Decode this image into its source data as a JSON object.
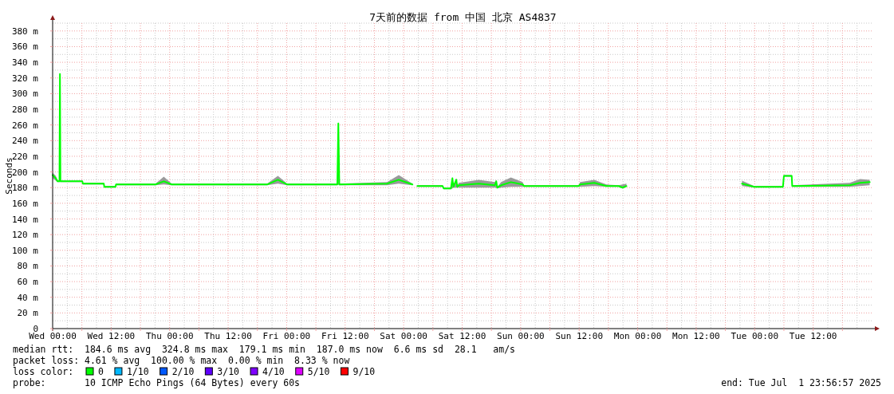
{
  "chart_data": {
    "type": "line",
    "title": "7天前的数据 from 中国 北京 AS4837",
    "ylabel": "Seconds",
    "xlim": [
      "2025-06-25T00:00",
      "2025-07-02T00:00"
    ],
    "xticks": [
      {
        "value": "2025-06-25T00:00",
        "label": "Wed 00:00"
      },
      {
        "value": "2025-06-25T06:00",
        "label": null
      },
      {
        "value": "2025-06-25T12:00",
        "label": "Wed 12:00"
      },
      {
        "value": "2025-06-25T18:00",
        "label": null
      },
      {
        "value": "2025-06-26T00:00",
        "label": "Thu 00:00"
      },
      {
        "value": "2025-06-26T06:00",
        "label": null
      },
      {
        "value": "2025-06-26T12:00",
        "label": "Thu 12:00"
      },
      {
        "value": "2025-06-26T18:00",
        "label": null
      },
      {
        "value": "2025-06-27T00:00",
        "label": "Fri 00:00"
      },
      {
        "value": "2025-06-27T06:00",
        "label": null
      },
      {
        "value": "2025-06-27T12:00",
        "label": "Fri 12:00"
      },
      {
        "value": "2025-06-27T18:00",
        "label": null
      },
      {
        "value": "2025-06-28T00:00",
        "label": "Sat 00:00"
      },
      {
        "value": "2025-06-28T06:00",
        "label": null
      },
      {
        "value": "2025-06-28T12:00",
        "label": "Sat 12:00"
      },
      {
        "value": "2025-06-28T18:00",
        "label": null
      },
      {
        "value": "2025-06-29T00:00",
        "label": "Sun 00:00"
      },
      {
        "value": "2025-06-29T06:00",
        "label": null
      },
      {
        "value": "2025-06-29T12:00",
        "label": "Sun 12:00"
      },
      {
        "value": "2025-06-29T18:00",
        "label": null
      },
      {
        "value": "2025-06-30T00:00",
        "label": "Mon 00:00"
      },
      {
        "value": "2025-06-30T06:00",
        "label": null
      },
      {
        "value": "2025-06-30T12:00",
        "label": "Mon 12:00"
      },
      {
        "value": "2025-06-30T18:00",
        "label": null
      },
      {
        "value": "2025-07-01T00:00",
        "label": "Tue 00:00"
      },
      {
        "value": "2025-07-01T06:00",
        "label": null
      },
      {
        "value": "2025-07-01T12:00",
        "label": "Tue 12:00"
      },
      {
        "value": "2025-07-01T18:00",
        "label": null
      }
    ],
    "ylim": [
      0,
      390
    ],
    "yticks": [
      0,
      {
        "value": 20,
        "label": "20 m"
      },
      {
        "value": 40,
        "label": "40 m"
      },
      {
        "value": 60,
        "label": "60 m"
      },
      {
        "value": 80,
        "label": "80 m"
      },
      {
        "value": 100,
        "label": "100 m"
      },
      {
        "value": 120,
        "label": "120 m"
      },
      {
        "value": 140,
        "label": "140 m"
      },
      {
        "value": 160,
        "label": "160 m"
      },
      {
        "value": 180,
        "label": "180 m"
      },
      {
        "value": 200,
        "label": "200 m"
      },
      {
        "value": 220,
        "label": "220 m"
      },
      {
        "value": 240,
        "label": "240 m"
      },
      {
        "value": 260,
        "label": "260 m"
      },
      {
        "value": 280,
        "label": "280 m"
      },
      {
        "value": 300,
        "label": "300 m"
      },
      {
        "value": 320,
        "label": "320 m"
      },
      {
        "value": 340,
        "label": "340 m"
      },
      {
        "value": 360,
        "label": "360 m"
      },
      {
        "value": 380,
        "label": "380 m"
      }
    ],
    "grid": true,
    "series": [
      {
        "color": "#00ff00",
        "x": [
          "2025-06-25T00:00",
          "2025-06-25T00:39",
          "2025-06-25T01:00",
          "2025-06-25T01:24",
          "2025-06-25T01:30",
          "2025-06-25T01:36",
          "2025-06-25T06:06",
          "2025-06-25T06:12",
          "2025-06-25T10:30",
          "2025-06-25T10:36",
          "2025-06-25T12:54",
          "2025-06-25T13:00",
          "2025-06-25T21:06",
          "2025-06-25T22:48",
          "2025-06-26T00:24",
          "2025-06-26T20:00",
          "2025-06-26T22:12",
          "2025-06-27T00:06",
          "2025-06-27T10:24",
          "2025-06-27T10:36",
          "2025-06-27T10:48",
          "2025-06-27T20:36",
          "2025-06-27T23:00",
          "2025-06-28T01:48"
        ],
        "values": [
          196,
          192,
          188,
          188,
          325,
          188,
          188,
          185,
          185,
          181,
          181,
          184,
          184,
          188,
          184,
          184,
          190,
          184,
          184,
          262,
          184,
          185,
          190,
          184
        ],
        "lower": [
          192,
          189,
          187,
          187,
          188,
          187,
          187,
          184,
          184,
          180,
          180,
          183,
          183,
          184,
          183,
          183,
          185,
          183,
          183,
          184,
          183,
          183,
          185,
          183
        ],
        "upper": [
          199,
          195,
          189,
          189,
          326,
          189,
          189,
          186,
          186,
          182,
          182,
          185,
          185,
          194,
          185,
          185,
          195,
          185,
          185,
          265,
          185,
          187,
          196,
          185
        ]
      },
      {
        "color": "#00ff00",
        "x": [
          "2025-06-28T02:48",
          "2025-06-28T08:00",
          "2025-06-28T08:12",
          "2025-06-28T09:42",
          "2025-06-28T10:00",
          "2025-06-28T10:12",
          "2025-06-28T10:48",
          "2025-06-28T11:00",
          "2025-06-28T11:18",
          "2025-06-28T15:24",
          "2025-06-28T18:42",
          "2025-06-28T19:00",
          "2025-06-28T19:12",
          "2025-06-28T20:00",
          "2025-06-28T22:00",
          "2025-06-29T00:24",
          "2025-06-29T00:42",
          "2025-06-29T11:54",
          "2025-06-29T12:12",
          "2025-06-29T15:06",
          "2025-06-29T17:36",
          "2025-06-29T20:06",
          "2025-06-29T20:54",
          "2025-06-29T21:42"
        ],
        "values": [
          182,
          182,
          179,
          179,
          192,
          181,
          190,
          181,
          183,
          185,
          183,
          188,
          180,
          183,
          187,
          184,
          182,
          182,
          184,
          186,
          182,
          182,
          180,
          182
        ],
        "lower": [
          181,
          181,
          178,
          178,
          179,
          180,
          180,
          180,
          180,
          180,
          180,
          180,
          179,
          180,
          181,
          181,
          181,
          181,
          181,
          182,
          181,
          181,
          179,
          181
        ],
        "upper": [
          183,
          183,
          180,
          180,
          194,
          182,
          192,
          182,
          186,
          190,
          187,
          190,
          181,
          187,
          193,
          187,
          183,
          183,
          187,
          190,
          184,
          183,
          184,
          185
        ]
      },
      {
        "color": "#00ff00",
        "x": [
          "2025-06-30T21:24",
          "2025-06-30T23:54",
          "2025-07-01T05:48",
          "2025-07-01T06:00",
          "2025-07-01T07:36",
          "2025-07-01T07:42",
          "2025-07-01T19:30",
          "2025-07-01T21:36",
          "2025-07-01T23:36"
        ],
        "values": [
          185,
          181,
          181,
          195,
          195,
          182,
          183,
          186,
          187
        ],
        "lower": [
          182,
          180,
          180,
          194,
          194,
          181,
          181,
          182,
          183
        ],
        "upper": [
          189,
          182,
          182,
          196,
          196,
          183,
          186,
          191,
          190
        ]
      }
    ],
    "annotations": [
      "median rtt:  184.6 ms avg  324.8 ms max  179.1 ms min  187.0 ms now  6.6 ms sd  28.1   am/s",
      "packet loss: 4.61 % avg  100.00 % max  0.00 % min  8.33 % now",
      "loss color:",
      "0",
      "1/10",
      "2/10",
      "3/10",
      "4/10",
      "5/10",
      "9/10",
      "probe:       10 ICMP Echo Pings (64 Bytes) every 60s",
      "end: Tue Jul  1 23:56:57 2025"
    ]
  }
}
